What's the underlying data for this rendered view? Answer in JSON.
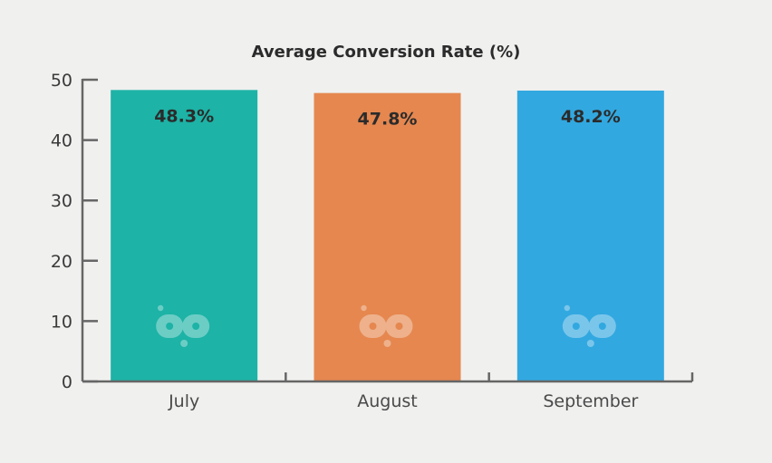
{
  "chart_data": {
    "type": "bar",
    "title": "Average Conversion Rate (%)",
    "xlabel": "",
    "ylabel": "",
    "categories": [
      "July",
      "August",
      "September"
    ],
    "values": [
      48.3,
      47.8,
      48.2
    ],
    "data_labels": [
      "48.3%",
      "47.8%",
      "48.2%"
    ],
    "colors": [
      "#1db3a6",
      "#e5874f",
      "#32a8e0"
    ],
    "ylim": [
      0,
      50
    ],
    "yticks": [
      0,
      10,
      20,
      30,
      40,
      50
    ],
    "grid": false,
    "legend": "none",
    "bar_logo_icon": "bp-logo-icon"
  }
}
